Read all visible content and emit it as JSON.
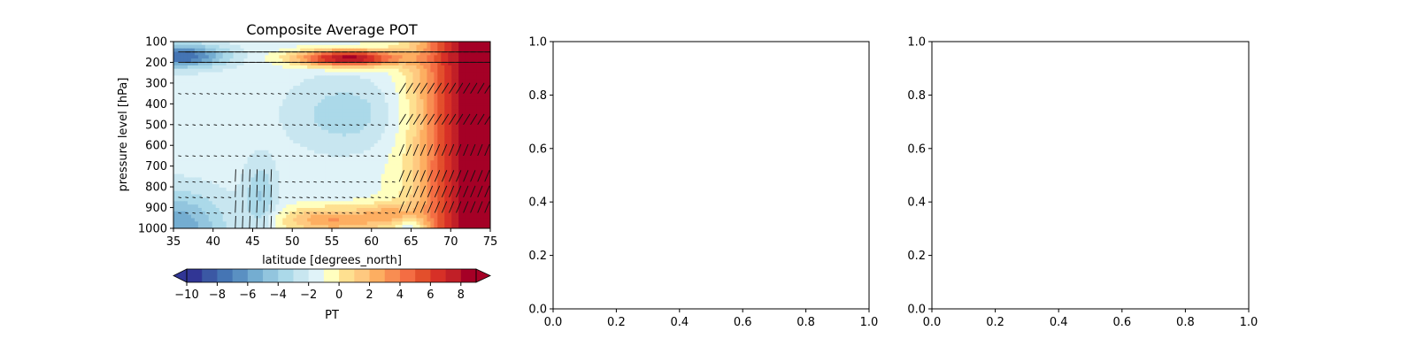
{
  "chart_data": [
    {
      "type": "heatmap",
      "title": "Composite Average POT",
      "xlabel": "latitude [degrees_north]",
      "ylabel": "pressure level [hPa]",
      "x_ticks": [
        "35",
        "40",
        "45",
        "50",
        "55",
        "60",
        "65",
        "70",
        "75"
      ],
      "y_ticks": [
        "100",
        "200",
        "300",
        "400",
        "500",
        "600",
        "700",
        "800",
        "900",
        "1000"
      ],
      "xlim": [
        35,
        75
      ],
      "ylim": [
        1000,
        100
      ],
      "y_inverted": true,
      "colormap": "RdYlBu",
      "colorbar": {
        "label": "PT",
        "ticks": [
          "−10",
          "−8",
          "−6",
          "−4",
          "−2",
          "0",
          "2",
          "4",
          "6",
          "8"
        ],
        "range": [
          -10,
          9
        ],
        "extend": "both",
        "levels": [
          -10,
          -9,
          -8,
          -7,
          -6,
          -5,
          -4,
          -3,
          -2,
          -1,
          0,
          1,
          2,
          3,
          4,
          5,
          6,
          7,
          8,
          9
        ]
      },
      "overlay": "wind vectors (quiver)"
    },
    {
      "type": "scatter",
      "title": "",
      "xlabel": "",
      "ylabel": "",
      "x_ticks": [
        "0.0",
        "0.2",
        "0.4",
        "0.6",
        "0.8",
        "1.0"
      ],
      "y_ticks": [
        "0.0",
        "0.2",
        "0.4",
        "0.6",
        "0.8",
        "1.0"
      ],
      "xlim": [
        0,
        1
      ],
      "ylim": [
        0,
        1
      ],
      "series": []
    },
    {
      "type": "scatter",
      "title": "",
      "xlabel": "",
      "ylabel": "",
      "x_ticks": [
        "0.0",
        "0.2",
        "0.4",
        "0.6",
        "0.8",
        "1.0"
      ],
      "y_ticks": [
        "0.0",
        "0.2",
        "0.4",
        "0.6",
        "0.8",
        "1.0"
      ],
      "xlim": [
        0,
        1
      ],
      "ylim": [
        0,
        1
      ],
      "series": []
    }
  ],
  "colors": {
    "palette": [
      "#a50026",
      "#c11f27",
      "#d73027",
      "#e34f2c",
      "#f46d43",
      "#f88d52",
      "#fdae61",
      "#fec980",
      "#fee090",
      "#ffffbf",
      "#e0f3f8",
      "#c8e6f0",
      "#abd9e9",
      "#92c5de",
      "#74add1",
      "#5a90c2",
      "#4575b4",
      "#3b58a4",
      "#313695"
    ]
  }
}
